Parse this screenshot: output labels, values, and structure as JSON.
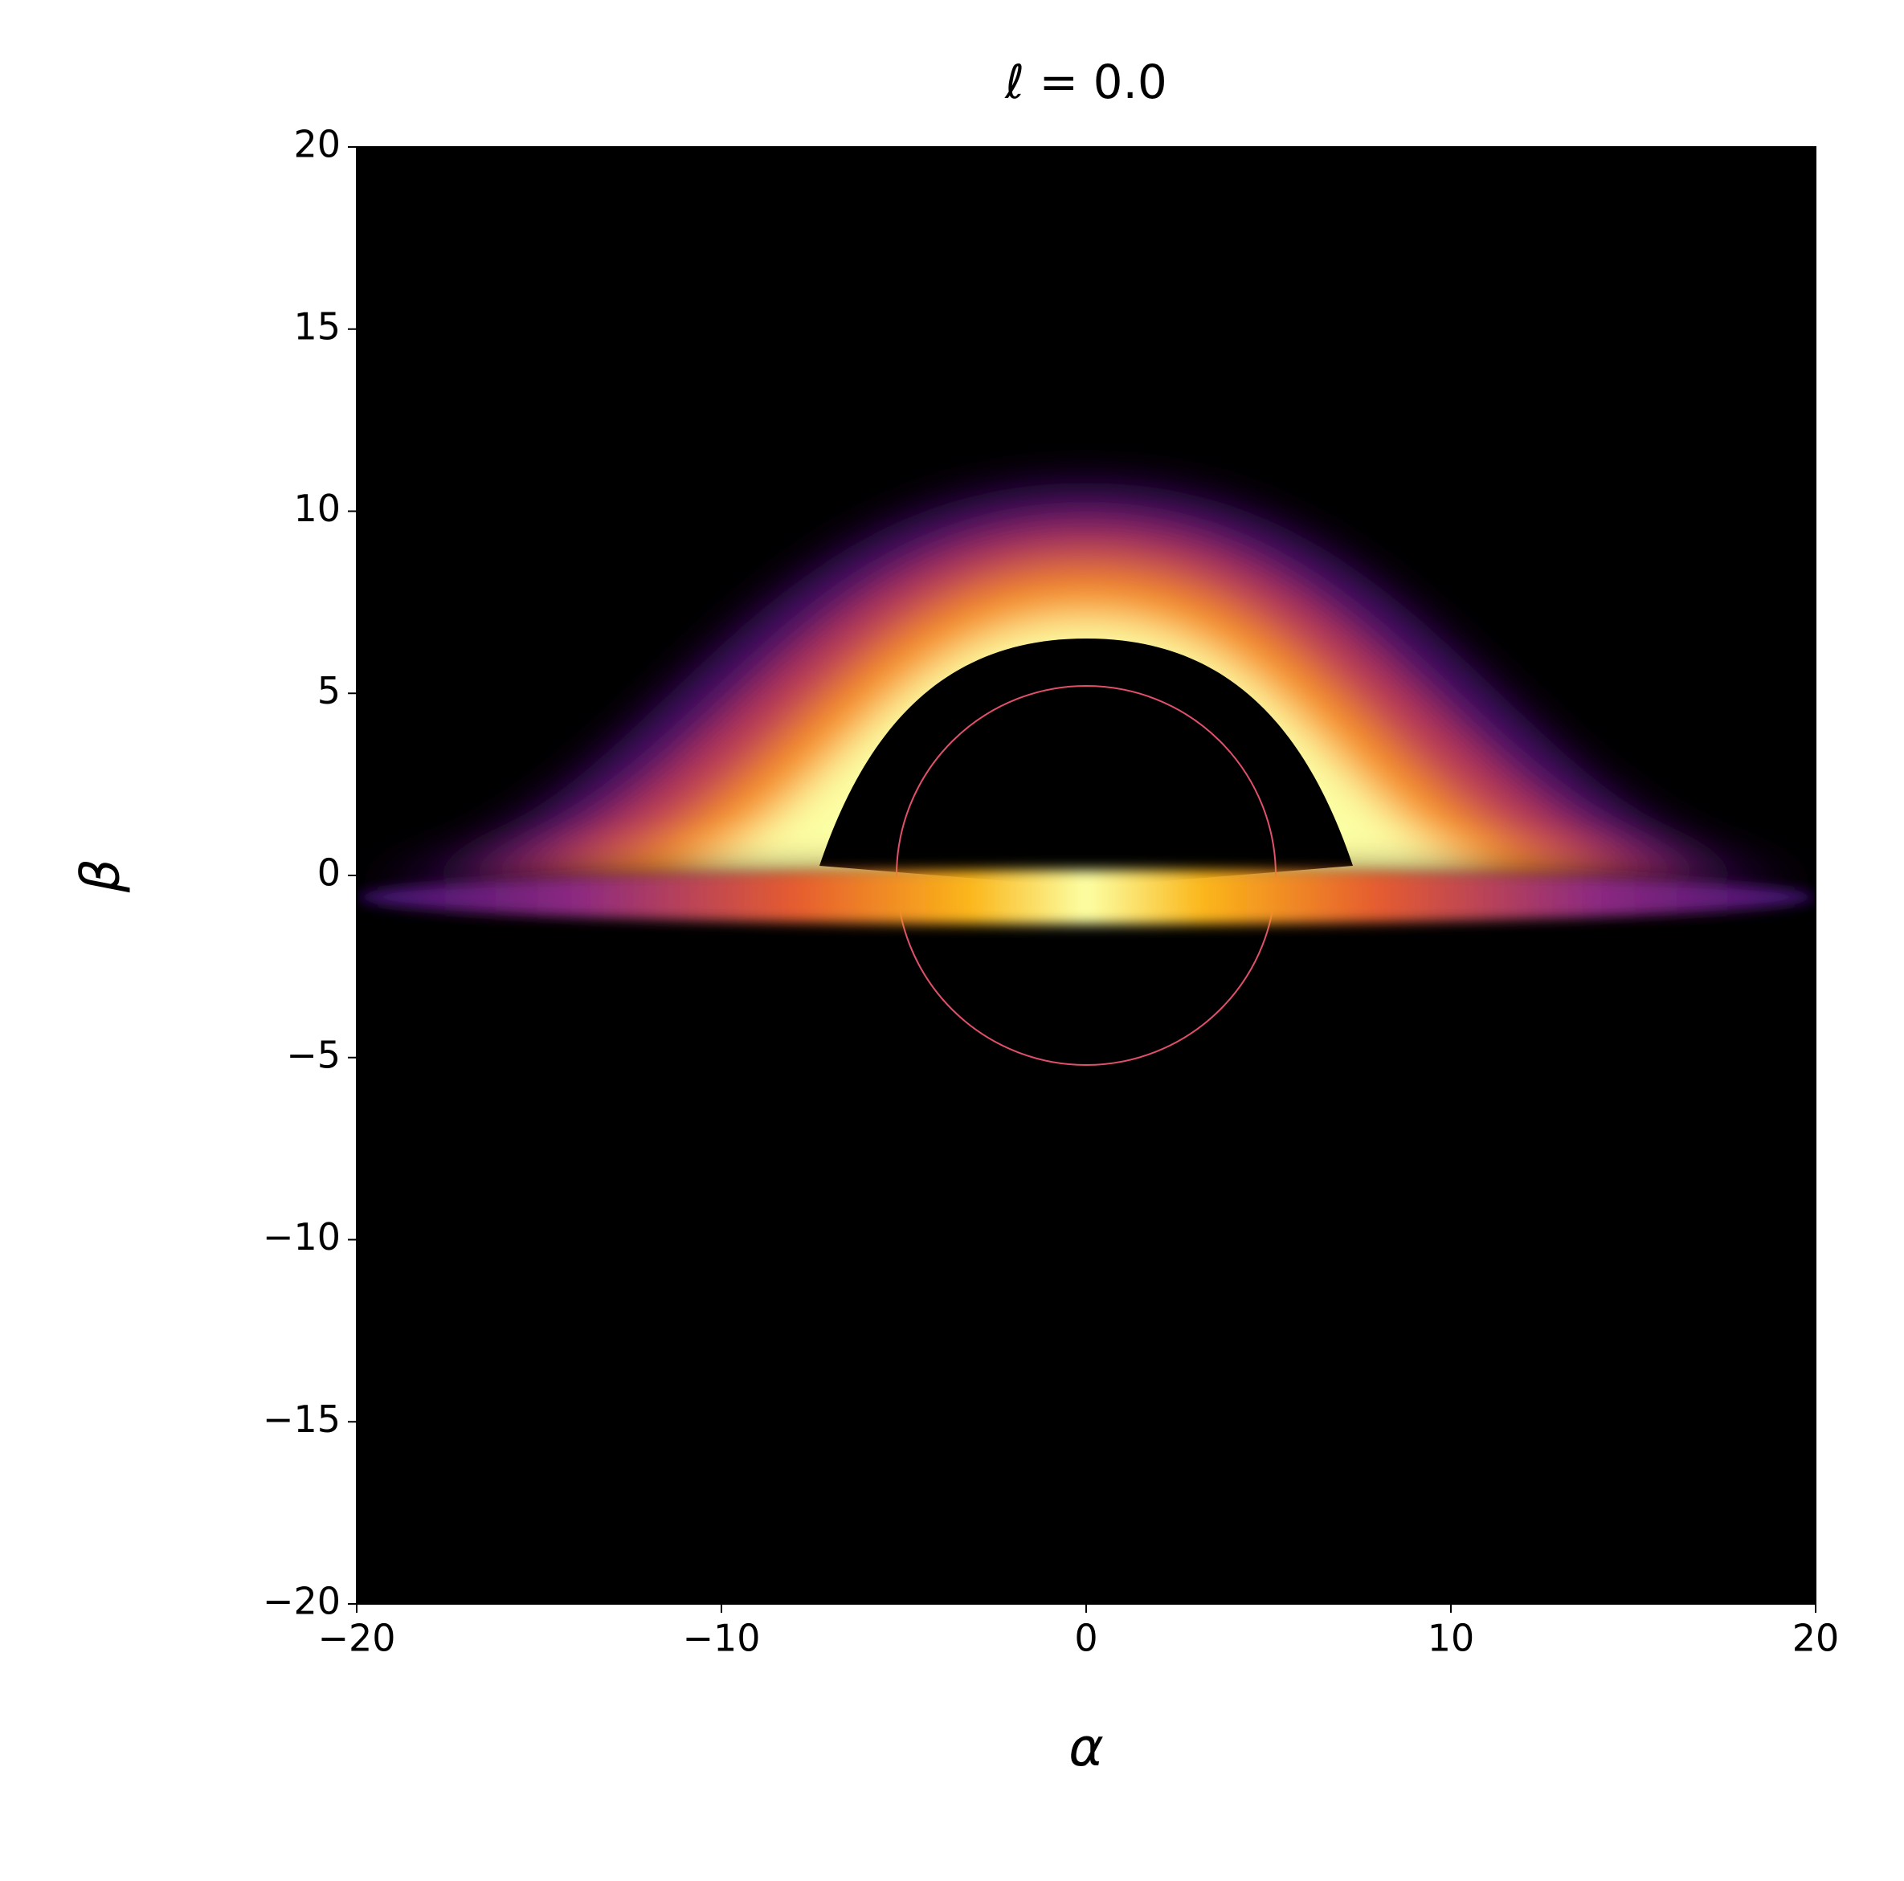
{
  "chart_data": {
    "type": "image",
    "title": "ℓ = 0.0",
    "x_label": "α",
    "y_label": "β",
    "xlim": [
      -20,
      20
    ],
    "ylim": [
      -20,
      20
    ],
    "xticks": [
      {
        "value": -20,
        "label": "−20"
      },
      {
        "value": -10,
        "label": "−10"
      },
      0,
      10,
      20
    ],
    "yticks": [
      {
        "value": -20,
        "label": "−20"
      },
      {
        "value": -15,
        "label": "−15"
      },
      {
        "value": -10,
        "label": "−10"
      },
      {
        "value": -5,
        "label": "−5"
      },
      0,
      5,
      10,
      15,
      20
    ]
  }
}
